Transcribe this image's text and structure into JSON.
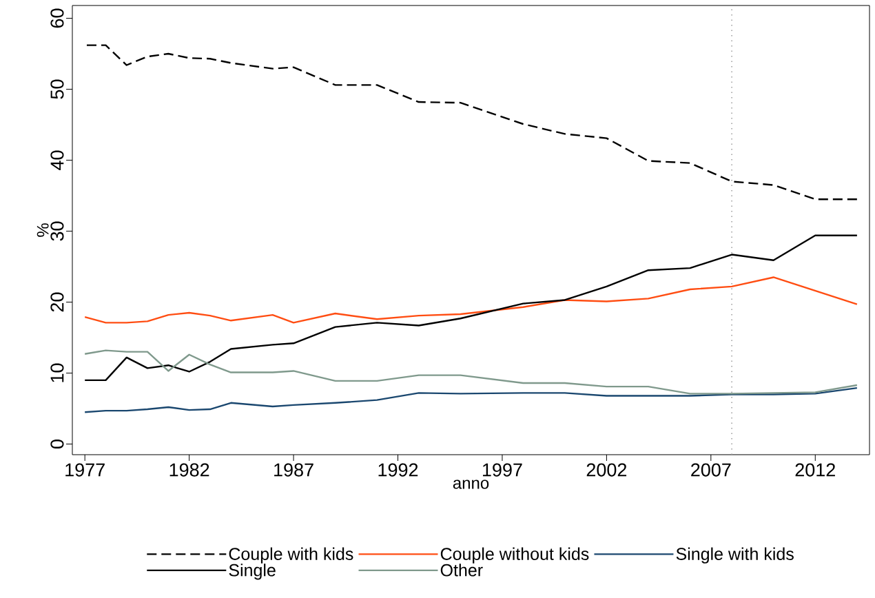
{
  "chart_data": {
    "type": "line",
    "xlabel": "anno",
    "ylabel": "%",
    "x": [
      1977,
      1978,
      1979,
      1980,
      1981,
      1982,
      1983,
      1984,
      1986,
      1987,
      1989,
      1991,
      1993,
      1995,
      1998,
      2000,
      2002,
      2004,
      2006,
      2008,
      2010,
      2012,
      2014
    ],
    "series": [
      {
        "name": "Couple with kids",
        "color": "#000000",
        "line_style": "dashed",
        "values": [
          56.2,
          56.2,
          53.4,
          54.6,
          55.0,
          54.4,
          54.3,
          53.7,
          52.9,
          53.1,
          50.6,
          50.6,
          48.2,
          48.1,
          45.1,
          43.7,
          43.1,
          39.9,
          39.6,
          37.0,
          36.5,
          34.5,
          34.5
        ]
      },
      {
        "name": "Couple without kids",
        "color": "#ff4d12",
        "line_style": "solid",
        "values": [
          17.9,
          17.1,
          17.1,
          17.3,
          18.2,
          18.5,
          18.1,
          17.4,
          18.2,
          17.1,
          18.4,
          17.6,
          18.1,
          18.3,
          19.3,
          20.3,
          20.1,
          20.5,
          21.8,
          22.2,
          23.5,
          21.6,
          19.7
        ]
      },
      {
        "name": "Single with kids",
        "color": "#1a476f",
        "line_style": "solid",
        "values": [
          4.5,
          4.7,
          4.7,
          4.9,
          5.2,
          4.8,
          4.9,
          5.8,
          5.3,
          5.5,
          5.8,
          6.2,
          7.2,
          7.1,
          7.2,
          7.2,
          6.8,
          6.8,
          6.8,
          7.0,
          7.0,
          7.1,
          7.9
        ]
      },
      {
        "name": "Single",
        "color": "#000000",
        "line_style": "solid",
        "values": [
          9.0,
          9.0,
          12.2,
          10.7,
          11.1,
          10.2,
          11.6,
          13.4,
          14.0,
          14.2,
          16.5,
          17.1,
          16.7,
          17.7,
          19.8,
          20.3,
          22.2,
          24.5,
          24.8,
          26.7,
          25.9,
          29.4,
          29.4
        ]
      },
      {
        "name": "Other",
        "color": "#7f998c",
        "line_style": "solid",
        "values": [
          12.7,
          13.2,
          13.0,
          13.0,
          10.3,
          12.6,
          11.2,
          10.1,
          10.1,
          10.3,
          8.9,
          8.9,
          9.7,
          9.7,
          8.6,
          8.6,
          8.1,
          8.1,
          7.1,
          7.1,
          7.2,
          7.3,
          8.3
        ]
      }
    ],
    "ref_lines": [
      {
        "axis": "x",
        "value": 2008,
        "color": "#999999",
        "line_style": "dotted"
      }
    ],
    "xlim": [
      1976.4,
      2014.6
    ],
    "ylim": [
      -1.5,
      61.8
    ],
    "xticks": [
      1977,
      1982,
      1987,
      1992,
      1997,
      2002,
      2007,
      2012
    ],
    "yticks": [
      0,
      10,
      20,
      30,
      40,
      50,
      60
    ],
    "legend": "bottom"
  }
}
